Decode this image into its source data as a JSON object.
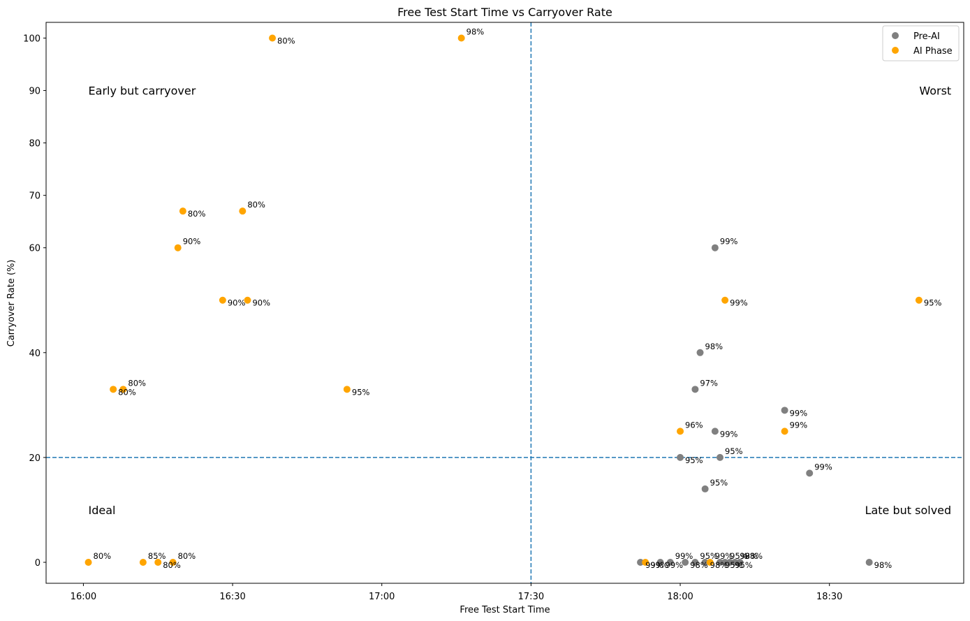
{
  "chart_data": {
    "type": "scatter",
    "title": "Free Test Start Time vs Carryover Rate",
    "xlabel": "Free Test Start Time",
    "ylabel": "Carryover Rate (%)",
    "xlim_minutes": [
      952.5,
      1137
    ],
    "ylim": [
      -4,
      103
    ],
    "x_ticks": [
      {
        "value": 960,
        "label": "16:00"
      },
      {
        "value": 990,
        "label": "16:30"
      },
      {
        "value": 1020,
        "label": "17:00"
      },
      {
        "value": 1050,
        "label": "17:30"
      },
      {
        "value": 1080,
        "label": "18:00"
      },
      {
        "value": 1110,
        "label": "18:30"
      }
    ],
    "y_ticks": [
      {
        "value": 0,
        "label": "0"
      },
      {
        "value": 20,
        "label": "20"
      },
      {
        "value": 40,
        "label": "40"
      },
      {
        "value": 60,
        "label": "60"
      },
      {
        "value": 70,
        "label": "70"
      },
      {
        "value": 80,
        "label": "80"
      },
      {
        "value": 90,
        "label": "90"
      },
      {
        "value": 100,
        "label": "100"
      }
    ],
    "thresholds": {
      "x_minutes": 1050,
      "x_label": "17:30",
      "y": 20
    },
    "quadrant_labels": [
      {
        "text": "Early but carryover",
        "position": "top-left"
      },
      {
        "text": "Worst",
        "position": "top-right"
      },
      {
        "text": "Ideal",
        "position": "bottom-left"
      },
      {
        "text": "Late but solved",
        "position": "bottom-right"
      }
    ],
    "legend": {
      "location": "upper-right",
      "entries": [
        {
          "name": "Pre-AI",
          "color": "#808080"
        },
        {
          "name": "AI Phase",
          "color": "#FFA500"
        }
      ]
    },
    "series": [
      {
        "name": "Pre-AI",
        "color": "#808080",
        "points": [
          {
            "time": "18:07",
            "minutes": 1087,
            "rate": 60,
            "label": "99%",
            "placement": "above"
          },
          {
            "time": "18:04",
            "minutes": 1084,
            "rate": 40,
            "label": "98%",
            "placement": "above"
          },
          {
            "time": "18:03",
            "minutes": 1083,
            "rate": 33,
            "label": "97%",
            "placement": "above"
          },
          {
            "time": "18:21",
            "minutes": 1101,
            "rate": 29,
            "label": "99%",
            "placement": "below"
          },
          {
            "time": "18:07",
            "minutes": 1087,
            "rate": 25,
            "label": "99%",
            "placement": "below"
          },
          {
            "time": "18:00",
            "minutes": 1080,
            "rate": 20,
            "label": "95%",
            "placement": "below"
          },
          {
            "time": "18:08",
            "minutes": 1088,
            "rate": 20,
            "label": "95%",
            "placement": "above"
          },
          {
            "time": "18:26",
            "minutes": 1106,
            "rate": 17,
            "label": "99%",
            "placement": "above"
          },
          {
            "time": "18:05",
            "minutes": 1085,
            "rate": 14,
            "label": "95%",
            "placement": "above"
          },
          {
            "time": "18:38",
            "minutes": 1118,
            "rate": 0,
            "label": "98%",
            "placement": "below"
          },
          {
            "time": "17:52",
            "minutes": 1072,
            "rate": 0,
            "label": "99%",
            "placement": "below"
          },
          {
            "time": "17:56",
            "minutes": 1076,
            "rate": 0,
            "label": "99%",
            "placement": "below"
          },
          {
            "time": "17:58",
            "minutes": 1078,
            "rate": 0,
            "label": "99%",
            "placement": "above"
          },
          {
            "time": "18:01",
            "minutes": 1081,
            "rate": 0,
            "label": "98%",
            "placement": "below"
          },
          {
            "time": "18:03",
            "minutes": 1083,
            "rate": 0,
            "label": "95%",
            "placement": "above"
          },
          {
            "time": "18:05",
            "minutes": 1085,
            "rate": 0,
            "label": "98%",
            "placement": "below"
          },
          {
            "time": "18:08",
            "minutes": 1088,
            "rate": 0,
            "label": "95%",
            "placement": "below"
          },
          {
            "time": "18:09",
            "minutes": 1089,
            "rate": 0,
            "label": "95%",
            "placement": "above"
          },
          {
            "time": "18:10",
            "minutes": 1090,
            "rate": 0,
            "label": "95%",
            "placement": "below"
          },
          {
            "time": "18:11",
            "minutes": 1091,
            "rate": 0,
            "label": "98%",
            "placement": "above"
          },
          {
            "time": "18:12",
            "minutes": 1092,
            "rate": 0,
            "label": "98%",
            "placement": "above"
          }
        ]
      },
      {
        "name": "AI Phase",
        "color": "#FFA500",
        "points": [
          {
            "time": "16:38",
            "minutes": 998,
            "rate": 100,
            "label": "80%",
            "placement": "below"
          },
          {
            "time": "17:16",
            "minutes": 1036,
            "rate": 100,
            "label": "98%",
            "placement": "above"
          },
          {
            "time": "16:20",
            "minutes": 980,
            "rate": 67,
            "label": "80%",
            "placement": "below"
          },
          {
            "time": "16:32",
            "minutes": 992,
            "rate": 67,
            "label": "80%",
            "placement": "above"
          },
          {
            "time": "16:19",
            "minutes": 979,
            "rate": 60,
            "label": "90%",
            "placement": "above"
          },
          {
            "time": "16:28",
            "minutes": 988,
            "rate": 50,
            "label": "90%",
            "placement": "below"
          },
          {
            "time": "16:33",
            "minutes": 993,
            "rate": 50,
            "label": "90%",
            "placement": "below"
          },
          {
            "time": "18:09",
            "minutes": 1089,
            "rate": 50,
            "label": "99%",
            "placement": "below"
          },
          {
            "time": "18:48",
            "minutes": 1128,
            "rate": 50,
            "label": "95%",
            "placement": "below"
          },
          {
            "time": "16:06",
            "minutes": 966,
            "rate": 33,
            "label": "80%",
            "placement": "below"
          },
          {
            "time": "16:08",
            "minutes": 968,
            "rate": 33,
            "label": "80%",
            "placement": "above"
          },
          {
            "time": "16:53",
            "minutes": 1013,
            "rate": 33,
            "label": "95%",
            "placement": "below"
          },
          {
            "time": "18:00",
            "minutes": 1080,
            "rate": 25,
            "label": "96%",
            "placement": "above"
          },
          {
            "time": "18:21",
            "minutes": 1101,
            "rate": 25,
            "label": "99%",
            "placement": "above"
          },
          {
            "time": "16:01",
            "minutes": 961,
            "rate": 0,
            "label": "80%",
            "placement": "above"
          },
          {
            "time": "16:12",
            "minutes": 972,
            "rate": 0,
            "label": "85%",
            "placement": "above"
          },
          {
            "time": "16:15",
            "minutes": 975,
            "rate": 0,
            "label": "80%",
            "placement": "below"
          },
          {
            "time": "16:18",
            "minutes": 978,
            "rate": 0,
            "label": "80%",
            "placement": "above"
          },
          {
            "time": "17:53",
            "minutes": 1073,
            "rate": 0,
            "label": "99%",
            "placement": "below"
          },
          {
            "time": "18:06",
            "minutes": 1086,
            "rate": 0,
            "label": "99%",
            "placement": "above"
          }
        ]
      }
    ]
  }
}
